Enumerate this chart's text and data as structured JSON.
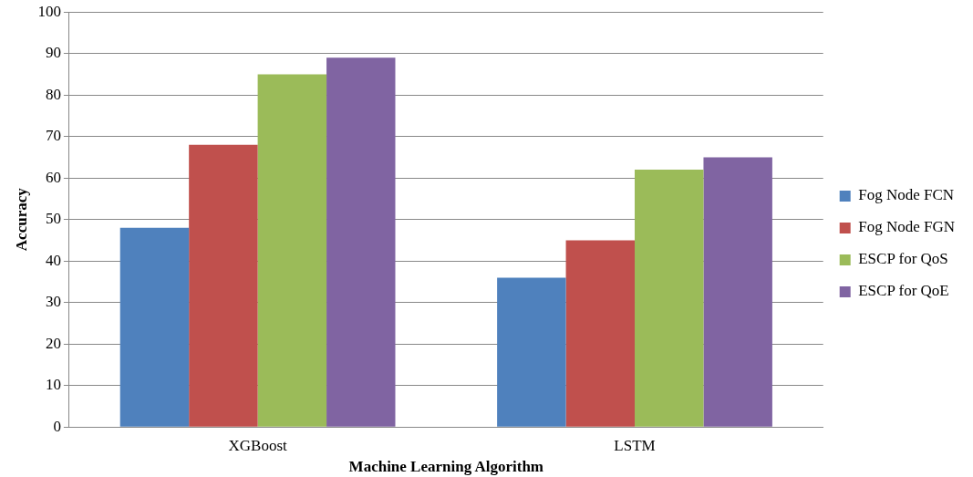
{
  "chart_data": {
    "type": "bar",
    "xlabel": "Machine Learning Algorithm",
    "ylabel": "Accuracy",
    "categories": [
      "XGBoost",
      "LSTM"
    ],
    "series": [
      {
        "name": "Fog Node FCN",
        "color": "#4f81bd",
        "values": [
          48,
          36
        ]
      },
      {
        "name": "Fog Node FGN",
        "color": "#c0504d",
        "values": [
          68,
          45
        ]
      },
      {
        "name": "ESCP for QoS",
        "color": "#9bbb59",
        "values": [
          85,
          62
        ]
      },
      {
        "name": "ESCP for QoE",
        "color": "#8064a2",
        "values": [
          89,
          65
        ]
      }
    ],
    "ylim": [
      0,
      100
    ],
    "yticks": [
      0,
      10,
      20,
      30,
      40,
      50,
      60,
      70,
      80,
      90,
      100
    ],
    "grid": "y",
    "legend": "right"
  }
}
